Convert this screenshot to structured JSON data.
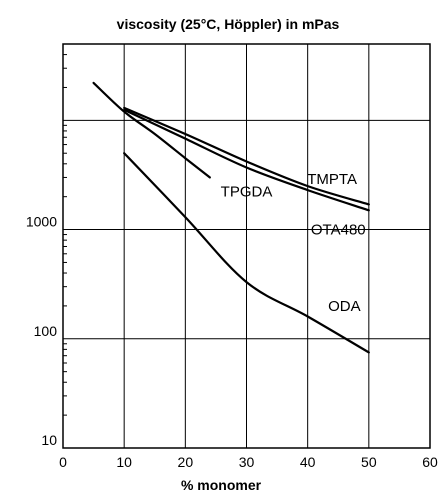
{
  "chart_data": {
    "type": "line",
    "title": "viscosity (25°C, Höppler) in mPas",
    "xlabel": "% monomer",
    "ylabel": "",
    "xlim": [
      0,
      60
    ],
    "ylim": [
      10,
      50000
    ],
    "y_scale": "log",
    "grid": true,
    "x_ticks": [
      "0",
      "10",
      "20",
      "30",
      "40",
      "50",
      "60"
    ],
    "y_ticks": [
      {
        "value": 10,
        "label": "10"
      },
      {
        "value": 100,
        "label": "100"
      },
      {
        "value": 1000,
        "label": "1000"
      }
    ],
    "series": [
      {
        "name": "TMPTA",
        "x": [
          10,
          20,
          30,
          40,
          50
        ],
        "y": [
          13000,
          7500,
          4200,
          2500,
          1700
        ]
      },
      {
        "name": "OTA480",
        "x": [
          10,
          20,
          30,
          40,
          50
        ],
        "y": [
          12500,
          6800,
          3700,
          2300,
          1500
        ]
      },
      {
        "name": "TPGDA",
        "x": [
          5,
          10,
          15,
          20,
          24
        ],
        "y": [
          22000,
          12000,
          7500,
          4500,
          3000
        ]
      },
      {
        "name": "ODA",
        "x": [
          10,
          20,
          30,
          40,
          50
        ],
        "y": [
          5000,
          1300,
          330,
          160,
          75
        ]
      }
    ]
  }
}
